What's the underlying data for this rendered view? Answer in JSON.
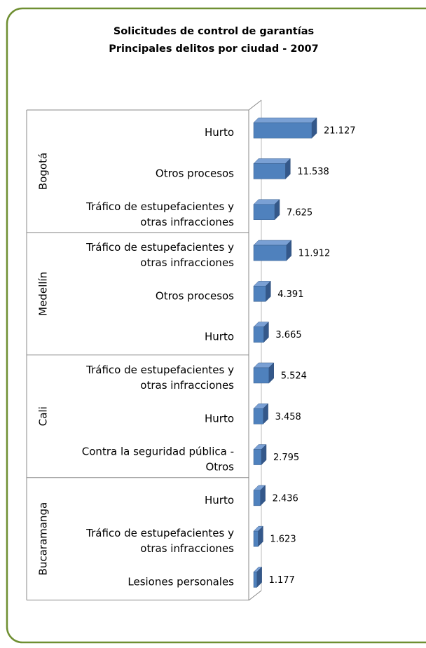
{
  "chart_data": {
    "type": "bar",
    "title": "Solicitudes de control de garantías",
    "subtitle": "Principales delitos por ciudad - 2007",
    "color": "#4f81bd",
    "groups": [
      {
        "name": "Bogotá",
        "categories": [
          "Hurto",
          "Otros procesos",
          "Tráfico de estupefacientes y otras infracciones"
        ],
        "values": [
          21127,
          11538,
          7625
        ],
        "value_labels": [
          "21.127",
          "11.538",
          "7.625"
        ]
      },
      {
        "name": "Medellín",
        "categories": [
          "Tráfico de estupefacientes y otras infracciones",
          "Otros procesos",
          "Hurto"
        ],
        "values": [
          11912,
          4391,
          3665
        ],
        "value_labels": [
          "11.912",
          "4.391",
          "3.665"
        ]
      },
      {
        "name": "Cali",
        "categories": [
          "Tráfico de estupefacientes y otras infracciones",
          "Hurto",
          "Contra la seguridad pública - Otros"
        ],
        "values": [
          5524,
          3458,
          2795
        ],
        "value_labels": [
          "5.524",
          "3.458",
          "2.795"
        ]
      },
      {
        "name": "Bucaramanga",
        "categories": [
          "Hurto",
          "Tráfico de estupefacientes y otras infracciones",
          "Lesiones personales"
        ],
        "values": [
          2436,
          1623,
          1177
        ],
        "value_labels": [
          "2.436",
          "1.623",
          "1.177"
        ]
      }
    ]
  }
}
